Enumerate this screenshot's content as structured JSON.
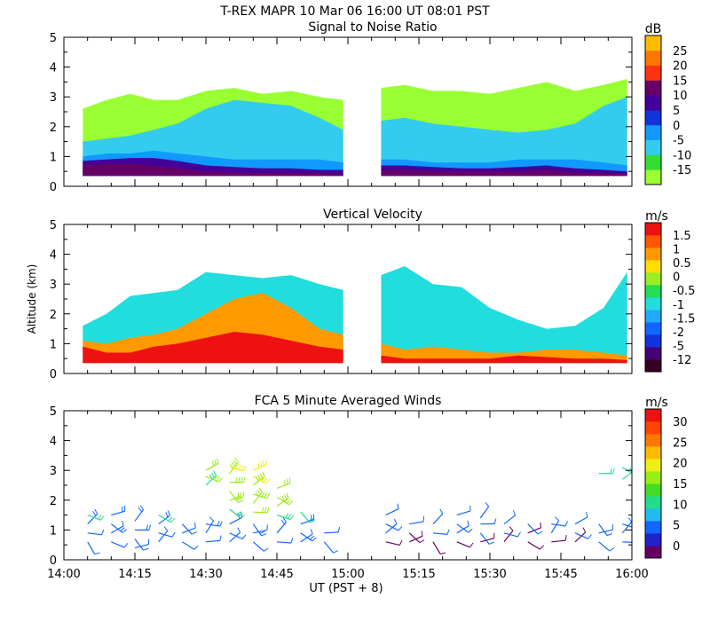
{
  "header": {
    "title": "T-REX   MAPR 10 Mar 06   16:00 UT   08:01   PST"
  },
  "colors": {
    "snr": [
      "#99ff33",
      "#33dd33",
      "#33ccee",
      "#1199ff",
      "#1133dd",
      "#440099",
      "#660066",
      "#ff3311",
      "#ff7700",
      "#ffbb00"
    ],
    "vv": [
      "#330022",
      "#440077",
      "#1133dd",
      "#1166ff",
      "#22aaff",
      "#22dddd",
      "#22dd55",
      "#99ee22",
      "#ffdd00",
      "#ff9900",
      "#ff5500",
      "#ee1111"
    ],
    "wind": [
      "#660066",
      "#2222cc",
      "#1166ff",
      "#22bbee",
      "#22dd88",
      "#44dd22",
      "#99ee11",
      "#eeee11",
      "#ffbb00",
      "#ff7700",
      "#ff4400",
      "#ee1111"
    ]
  },
  "chart_data": [
    {
      "type": "heatmap",
      "title": "Signal to Noise Ratio",
      "xlabel": "",
      "ylabel": "",
      "unit": "dB",
      "x_range_min": [
        0,
        120
      ],
      "x_ticks_min": [
        0,
        15,
        30,
        45,
        60,
        75,
        90,
        105,
        120
      ],
      "ylim": [
        0,
        5
      ],
      "y_ticks": [
        "0",
        "1",
        "2",
        "3",
        "4",
        "5"
      ],
      "data_gap_min": [
        60,
        67
      ],
      "colorbar": {
        "labels": [
          "-15",
          "-10",
          "-5",
          "0",
          "5",
          "10",
          "15",
          "20",
          "25"
        ],
        "values": [
          -15,
          -10,
          -5,
          0,
          5,
          10,
          15,
          20,
          25
        ]
      },
      "layers": [
        {
          "t": [
            4,
            9,
            14,
            19,
            24,
            30,
            36,
            42,
            48,
            54,
            59,
            67,
            72,
            78,
            84,
            90,
            96,
            102,
            108,
            114,
            119
          ],
          "top_km": [
            2.6,
            2.9,
            3.1,
            2.9,
            2.9,
            3.2,
            3.3,
            3.1,
            3.2,
            3.0,
            2.9,
            3.3,
            3.4,
            3.2,
            3.2,
            3.1,
            3.3,
            3.5,
            3.2,
            3.4,
            3.6
          ],
          "value_db": -15
        },
        {
          "t": [
            4,
            9,
            14,
            19,
            24,
            30,
            36,
            42,
            48,
            54,
            59,
            67,
            72,
            78,
            84,
            90,
            96,
            102,
            108,
            114,
            119
          ],
          "top_km": [
            1.5,
            1.6,
            1.7,
            1.9,
            2.1,
            2.6,
            2.9,
            2.8,
            2.7,
            2.3,
            1.9,
            2.2,
            2.3,
            2.1,
            2.0,
            1.9,
            1.8,
            1.9,
            2.1,
            2.7,
            3.0
          ],
          "value_db": -5
        },
        {
          "t": [
            4,
            9,
            14,
            19,
            24,
            30,
            36,
            42,
            48,
            54,
            59,
            67,
            72,
            78,
            84,
            90,
            96,
            102,
            108,
            114,
            119
          ],
          "top_km": [
            1.0,
            1.1,
            1.1,
            1.2,
            1.1,
            1.0,
            0.9,
            0.9,
            0.9,
            0.9,
            0.8,
            0.9,
            0.9,
            0.8,
            0.8,
            0.8,
            0.9,
            0.9,
            0.9,
            0.8,
            0.7
          ],
          "value_db": 0
        },
        {
          "t": [
            4,
            9,
            14,
            19,
            24,
            30,
            36,
            42,
            48,
            54,
            59,
            67,
            72,
            78,
            84,
            90,
            96,
            102,
            108,
            114,
            119
          ],
          "top_km": [
            0.85,
            0.9,
            0.95,
            0.95,
            0.85,
            0.7,
            0.65,
            0.6,
            0.6,
            0.55,
            0.55,
            0.7,
            0.7,
            0.65,
            0.6,
            0.6,
            0.65,
            0.7,
            0.6,
            0.55,
            0.5
          ],
          "value_db": 5
        },
        {
          "t": [
            4,
            9,
            14,
            19,
            24,
            30,
            36,
            42,
            48,
            54,
            59,
            67,
            72,
            78,
            84,
            90,
            96,
            102,
            108,
            114,
            119
          ],
          "top_km": [
            0.7,
            0.75,
            0.75,
            0.7,
            0.6,
            0.5,
            0.45,
            0.45,
            0.45,
            0.45,
            0.4,
            0.55,
            0.55,
            0.5,
            0.5,
            0.5,
            0.5,
            0.55,
            0.45,
            0.45,
            0.4
          ],
          "value_db": 10
        }
      ]
    },
    {
      "type": "heatmap",
      "title": "Vertical Velocity",
      "xlabel": "",
      "ylabel": "Altitude (km)",
      "unit": "m/s",
      "x_range_min": [
        0,
        120
      ],
      "x_ticks_min": [
        0,
        15,
        30,
        45,
        60,
        75,
        90,
        105,
        120
      ],
      "ylim": [
        0,
        5
      ],
      "y_ticks": [
        "0",
        "1",
        "2",
        "3",
        "4",
        "5"
      ],
      "data_gap_min": [
        60,
        67
      ],
      "colorbar": {
        "labels": [
          "-12",
          "-5",
          "-2",
          "-1.5",
          "-1",
          "-0.5",
          "0",
          "0.5",
          "1",
          "1.5"
        ],
        "values": [
          -12,
          -5,
          -2,
          -1.5,
          -1,
          -0.5,
          0,
          0.5,
          1,
          1.5
        ]
      },
      "layers": [
        {
          "t": [
            4,
            9,
            14,
            19,
            24,
            30,
            36,
            42,
            48,
            54,
            59,
            67,
            72,
            78,
            84,
            90,
            96,
            102,
            108,
            114,
            119
          ],
          "top_km": [
            1.6,
            2.0,
            2.6,
            2.7,
            2.8,
            3.4,
            3.3,
            3.2,
            3.3,
            3.0,
            2.8,
            3.3,
            3.6,
            3.0,
            2.9,
            2.2,
            1.8,
            1.5,
            1.6,
            2.2,
            3.4
          ],
          "value_ms": -1
        },
        {
          "t": [
            4,
            9,
            14,
            19,
            24,
            30,
            36,
            42,
            48,
            54,
            59,
            67,
            72,
            78,
            84,
            90,
            96,
            102,
            108,
            114,
            119
          ],
          "top_km": [
            1.1,
            1.0,
            1.2,
            1.3,
            1.5,
            2.0,
            2.5,
            2.7,
            2.2,
            1.5,
            1.3,
            1.0,
            0.8,
            0.9,
            0.8,
            0.7,
            0.7,
            0.8,
            0.8,
            0.7,
            0.6
          ],
          "value_ms": 0.5
        },
        {
          "t": [
            4,
            9,
            14,
            19,
            24,
            30,
            36,
            42,
            48,
            54,
            59,
            67,
            72,
            78,
            84,
            90,
            96,
            102,
            108,
            114,
            119
          ],
          "top_km": [
            0.9,
            0.7,
            0.7,
            0.9,
            1.0,
            1.2,
            1.4,
            1.3,
            1.1,
            0.9,
            0.8,
            0.6,
            0.5,
            0.5,
            0.5,
            0.5,
            0.6,
            0.55,
            0.5,
            0.5,
            0.45
          ],
          "value_ms": 1.5
        }
      ]
    },
    {
      "type": "barbs",
      "title": "FCA 5 Minute Averaged Winds",
      "xlabel": "UT  (PST + 8)",
      "ylabel": "",
      "unit": "m/s",
      "x_range_min": [
        0,
        120
      ],
      "x_ticks_min": [
        0,
        15,
        30,
        45,
        60,
        75,
        90,
        105,
        120
      ],
      "x_tick_labels": [
        "14:00",
        "14:15",
        "14:30",
        "14:45",
        "15:00",
        "15:15",
        "15:30",
        "15:45",
        "16:00"
      ],
      "ylim": [
        0,
        5
      ],
      "y_ticks": [
        "0",
        "1",
        "2",
        "3",
        "4",
        "5"
      ],
      "colorbar": {
        "labels": [
          "0",
          "5",
          "10",
          "15",
          "20",
          "25",
          "30"
        ],
        "values": [
          0,
          5,
          10,
          15,
          20,
          25,
          30
        ]
      },
      "profiles": [
        {
          "t": 5,
          "alt_km": [
            0.6,
            0.9,
            1.2,
            1.5
          ],
          "speed_ms": [
            5,
            7,
            9,
            11
          ]
        },
        {
          "t": 10,
          "alt_km": [
            0.6,
            0.9,
            1.2,
            1.5
          ],
          "speed_ms": [
            5,
            6,
            8,
            9
          ]
        },
        {
          "t": 15,
          "alt_km": [
            0.4,
            0.7,
            1.0,
            1.3
          ],
          "speed_ms": [
            5,
            6,
            8,
            9
          ]
        },
        {
          "t": 20,
          "alt_km": [
            0.6,
            0.9,
            1.2,
            1.5
          ],
          "speed_ms": [
            5,
            7,
            8,
            10
          ]
        },
        {
          "t": 25,
          "alt_km": [
            0.6,
            0.9,
            1.2
          ],
          "speed_ms": [
            5,
            6,
            7
          ]
        },
        {
          "t": 30,
          "alt_km": [
            0.6,
            0.9,
            1.2,
            2.5,
            2.8,
            3.0
          ],
          "speed_ms": [
            6,
            7,
            8,
            14,
            15,
            16
          ]
        },
        {
          "t": 35,
          "alt_km": [
            0.6,
            0.9,
            1.2,
            1.7,
            2.0,
            2.3,
            2.6,
            2.9,
            3.1
          ],
          "speed_ms": [
            6,
            7,
            8,
            14,
            15,
            17,
            18,
            19,
            20
          ]
        },
        {
          "t": 40,
          "alt_km": [
            0.6,
            0.9,
            1.2,
            1.6,
            1.9,
            2.2,
            2.5,
            2.8,
            3.0
          ],
          "speed_ms": [
            6,
            7,
            8,
            15,
            16,
            17,
            19,
            20,
            21
          ]
        },
        {
          "t": 45,
          "alt_km": [
            0.6,
            0.9,
            1.5,
            1.8,
            2.1,
            2.4
          ],
          "speed_ms": [
            7,
            8,
            14,
            15,
            16,
            17
          ]
        },
        {
          "t": 50,
          "alt_km": [
            0.6,
            0.9,
            1.2,
            1.6
          ],
          "speed_ms": [
            7,
            8,
            9,
            11
          ]
        },
        {
          "t": 55,
          "alt_km": [
            0.6,
            0.9
          ],
          "speed_ms": [
            6,
            7
          ]
        },
        {
          "t": 68,
          "alt_km": [
            0.6,
            0.9,
            1.2,
            1.5
          ],
          "speed_ms": [
            4,
            5,
            5,
            6
          ]
        },
        {
          "t": 73,
          "alt_km": [
            0.6,
            0.9,
            1.2
          ],
          "speed_ms": [
            4,
            4,
            5
          ]
        },
        {
          "t": 78,
          "alt_km": [
            0.6,
            0.9,
            1.2
          ],
          "speed_ms": [
            4,
            5,
            5
          ]
        },
        {
          "t": 83,
          "alt_km": [
            0.6,
            0.9,
            1.2,
            1.5
          ],
          "speed_ms": [
            4,
            5,
            5,
            6
          ]
        },
        {
          "t": 88,
          "alt_km": [
            0.6,
            0.9,
            1.2,
            1.4
          ],
          "speed_ms": [
            4,
            5,
            5,
            5
          ]
        },
        {
          "t": 93,
          "alt_km": [
            0.6,
            0.9,
            1.2
          ],
          "speed_ms": [
            4,
            5,
            5
          ]
        },
        {
          "t": 98,
          "alt_km": [
            0.6,
            0.9,
            1.2
          ],
          "speed_ms": [
            4,
            4,
            5
          ]
        },
        {
          "t": 103,
          "alt_km": [
            0.6,
            0.9,
            1.2
          ],
          "speed_ms": [
            4,
            5,
            5
          ]
        },
        {
          "t": 108,
          "alt_km": [
            0.6,
            0.9,
            1.2
          ],
          "speed_ms": [
            4,
            5,
            6
          ]
        },
        {
          "t": 113,
          "alt_km": [
            0.6,
            0.9,
            1.2,
            2.9
          ],
          "speed_ms": [
            5,
            5,
            6,
            10
          ]
        },
        {
          "t": 118,
          "alt_km": [
            0.6,
            0.9,
            1.2,
            2.7,
            3.1
          ],
          "speed_ms": [
            5,
            6,
            6,
            10,
            11
          ]
        }
      ]
    }
  ]
}
